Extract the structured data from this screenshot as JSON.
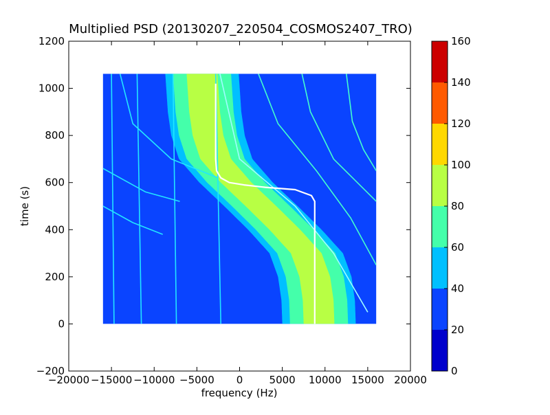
{
  "chart_data": {
    "type": "heatmap",
    "title": "Multiplied PSD (20130207_220504_COSMOS2407_TRO)",
    "xlabel": "frequency (Hz)",
    "ylabel": "time (s)",
    "xlim": [
      -20000,
      20000
    ],
    "ylim": [
      -200,
      1200
    ],
    "xticks": [
      -20000,
      -15000,
      -10000,
      -5000,
      0,
      5000,
      10000,
      15000,
      20000
    ],
    "xtick_labels": [
      "−20000",
      "−15000",
      "−10000",
      "−5000",
      "0",
      "5000",
      "10000",
      "15000",
      "20000"
    ],
    "yticks": [
      -200,
      0,
      200,
      400,
      600,
      800,
      1000,
      1200
    ],
    "ytick_labels": [
      "−200",
      "0",
      "200",
      "400",
      "600",
      "800",
      "1000",
      "1200"
    ],
    "data_extent": {
      "x": [
        -16000,
        16000
      ],
      "y": [
        0,
        1062
      ]
    },
    "background_level_color": "#0a44ff",
    "colorbar": {
      "min": 0,
      "max": 160,
      "ticks": [
        0,
        20,
        40,
        60,
        80,
        100,
        120,
        140,
        160
      ],
      "tick_labels": [
        "0",
        "20",
        "40",
        "60",
        "80",
        "100",
        "120",
        "140",
        "160"
      ],
      "levels": [
        {
          "from": 0,
          "to": 20,
          "color": "#0000cc"
        },
        {
          "from": 20,
          "to": 40,
          "color": "#0a44ff"
        },
        {
          "from": 40,
          "to": 60,
          "color": "#00c0ff"
        },
        {
          "from": 60,
          "to": 80,
          "color": "#44ffaa"
        },
        {
          "from": 80,
          "to": 100,
          "color": "#b8ff44"
        },
        {
          "from": 100,
          "to": 120,
          "color": "#ffd800"
        },
        {
          "from": 120,
          "to": 140,
          "color": "#ff5a00"
        },
        {
          "from": 140,
          "to": 160,
          "color": "#cc0000"
        }
      ]
    },
    "main_signal": {
      "description_points": [
        {
          "t": 0,
          "f": 9300
        },
        {
          "t": 100,
          "f": 9200
        },
        {
          "t": 200,
          "f": 8800
        },
        {
          "t": 300,
          "f": 7800
        },
        {
          "t": 400,
          "f": 5300
        },
        {
          "t": 500,
          "f": 2500
        },
        {
          "t": 600,
          "f": -400
        },
        {
          "t": 700,
          "f": -2800
        },
        {
          "t": 800,
          "f": -3700
        },
        {
          "t": 900,
          "f": -4100
        },
        {
          "t": 1062,
          "f": -4400
        }
      ],
      "inner_band_width_hz": 3600,
      "outer_band_width_hz": 6800,
      "inner_color": "#b8ff44",
      "outer_color": "#44ffaa",
      "edge_color": "#00c0ff"
    },
    "white_track": [
      {
        "t": 0,
        "f": 8800
      },
      {
        "t": 520,
        "f": 8800
      },
      {
        "t": 545,
        "f": 8400
      },
      {
        "t": 570,
        "f": 6500
      },
      {
        "t": 580,
        "f": 3000
      },
      {
        "t": 590,
        "f": 500
      },
      {
        "t": 600,
        "f": -1200
      },
      {
        "t": 620,
        "f": -2200
      },
      {
        "t": 650,
        "f": -2700
      },
      {
        "t": 700,
        "f": -2800
      },
      {
        "t": 1020,
        "f": -2800
      }
    ],
    "thin_lines": [
      {
        "points": [
          {
            "t": 1062,
            "f": -2300
          },
          {
            "t": 700,
            "f": 0
          },
          {
            "t": 500,
            "f": 6500
          },
          {
            "t": 300,
            "f": 11000
          },
          {
            "t": 50,
            "f": 15000
          }
        ],
        "color": "#9ffcff"
      },
      {
        "points": [
          {
            "t": 1062,
            "f": 2200
          },
          {
            "t": 850,
            "f": 4500
          },
          {
            "t": 650,
            "f": 9000
          },
          {
            "t": 450,
            "f": 13000
          },
          {
            "t": 250,
            "f": 16000
          }
        ],
        "color": "#44ffcc"
      },
      {
        "points": [
          {
            "t": 1062,
            "f": 7300
          },
          {
            "t": 900,
            "f": 8300
          },
          {
            "t": 700,
            "f": 11000
          },
          {
            "t": 520,
            "f": 16000
          }
        ],
        "color": "#44ffcc"
      },
      {
        "points": [
          {
            "t": 1062,
            "f": 12500
          },
          {
            "t": 860,
            "f": 13200
          },
          {
            "t": 740,
            "f": 14500
          },
          {
            "t": 650,
            "f": 16000
          }
        ],
        "color": "#44ffcc"
      },
      {
        "points": [
          {
            "t": 1062,
            "f": -14000
          },
          {
            "t": 850,
            "f": -12500
          },
          {
            "t": 700,
            "f": -8000
          },
          {
            "t": 620,
            "f": -2500
          }
        ],
        "color": "#22e6ff"
      },
      {
        "points": [
          {
            "t": 660,
            "f": -16000
          },
          {
            "t": 560,
            "f": -11000
          },
          {
            "t": 520,
            "f": -7000
          }
        ],
        "color": "#22e6ff"
      },
      {
        "points": [
          {
            "t": 500,
            "f": -16000
          },
          {
            "t": 430,
            "f": -12500
          },
          {
            "t": 380,
            "f": -9000
          }
        ],
        "color": "#22e6ff"
      },
      {
        "points": [
          {
            "t": 1062,
            "f": -7800
          },
          {
            "t": 0,
            "f": -7400
          }
        ],
        "color": "#22e6ff"
      },
      {
        "points": [
          {
            "t": 1062,
            "f": -12000
          },
          {
            "t": 0,
            "f": -11500
          }
        ],
        "color": "#22e6ff"
      },
      {
        "points": [
          {
            "t": 1062,
            "f": -15000
          },
          {
            "t": 0,
            "f": -14700
          }
        ],
        "color": "#22e6ff"
      },
      {
        "points": [
          {
            "t": 1062,
            "f": -2800
          },
          {
            "t": 0,
            "f": -2200
          }
        ],
        "color": "#22e6ff"
      }
    ]
  }
}
